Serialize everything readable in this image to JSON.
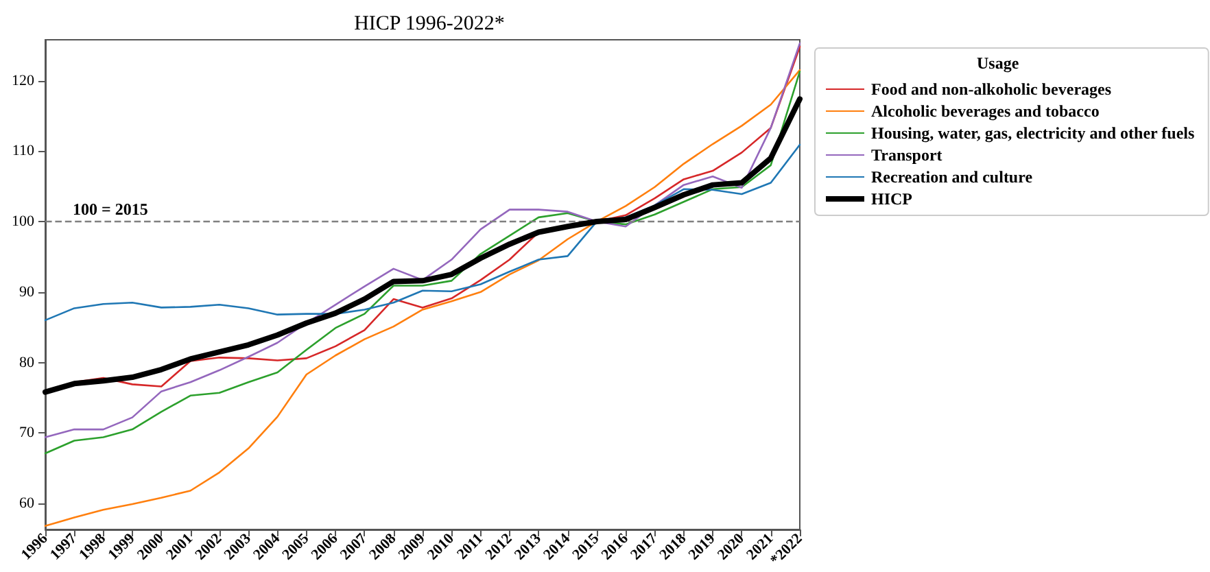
{
  "chart_data": {
    "type": "line",
    "title": "HICP 1996-2022*",
    "legend_title": "Usage",
    "categories": [
      "1996",
      "1997",
      "1998",
      "1999",
      "2000",
      "2001",
      "2002",
      "2003",
      "2004",
      "2005",
      "2006",
      "2007",
      "2008",
      "2009",
      "2010",
      "2011",
      "2012",
      "2013",
      "2014",
      "2015",
      "2016",
      "2017",
      "2018",
      "2019",
      "2020",
      "2021",
      "*2022"
    ],
    "series": [
      {
        "name": "Food and non-alkoholic beverages",
        "color": "#d62728",
        "values": [
          75.8,
          77.2,
          77.8,
          76.9,
          76.6,
          80.2,
          80.7,
          80.6,
          80.3,
          80.6,
          82.3,
          84.6,
          89.0,
          87.8,
          89.1,
          91.7,
          94.6,
          98.5,
          99.3,
          100,
          100.9,
          103.3,
          106.0,
          107.2,
          109.8,
          113.3,
          124.8
        ]
      },
      {
        "name": "Alcoholic beverages and tobacco",
        "color": "#ff7f0e",
        "values": [
          56.8,
          58.0,
          59.1,
          59.9,
          60.8,
          61.8,
          64.4,
          67.8,
          72.3,
          78.3,
          81.0,
          83.3,
          85.1,
          87.5,
          88.7,
          90.0,
          92.5,
          94.5,
          97.5,
          100,
          102.2,
          104.9,
          108.2,
          111.0,
          113.6,
          116.6,
          121.5
        ]
      },
      {
        "name": "Housing, water, gas, electricity and other fuels",
        "color": "#2ca02c",
        "values": [
          67.1,
          68.9,
          69.4,
          70.5,
          73.0,
          75.3,
          75.7,
          77.2,
          78.6,
          81.8,
          84.9,
          86.9,
          90.9,
          90.9,
          91.6,
          95.4,
          98.0,
          100.6,
          101.2,
          100,
          99.6,
          101.0,
          102.8,
          104.6,
          104.9,
          108.0,
          121.3
        ]
      },
      {
        "name": "Transport",
        "color": "#9467bd",
        "values": [
          69.4,
          70.5,
          70.5,
          72.2,
          75.9,
          77.2,
          78.9,
          80.8,
          82.8,
          85.6,
          88.2,
          90.8,
          93.3,
          91.7,
          94.6,
          98.9,
          101.7,
          101.7,
          101.4,
          100,
          99.3,
          102.3,
          105.2,
          106.4,
          104.8,
          113.3,
          125.3
        ]
      },
      {
        "name": "Recreation and culture",
        "color": "#1f77b4",
        "values": [
          86.0,
          87.7,
          88.3,
          88.5,
          87.8,
          87.9,
          88.2,
          87.7,
          86.8,
          86.9,
          86.9,
          87.5,
          88.5,
          90.2,
          90.1,
          91.1,
          92.9,
          94.6,
          95.1,
          100,
          100.6,
          102.3,
          104.6,
          104.5,
          103.9,
          105.5,
          110.9
        ]
      },
      {
        "name": "HICP",
        "color": "#000000",
        "values": [
          75.8,
          77.0,
          77.4,
          77.9,
          79.0,
          80.5,
          81.5,
          82.5,
          83.9,
          85.6,
          87.0,
          89.0,
          91.5,
          91.6,
          92.5,
          94.8,
          96.8,
          98.5,
          99.3,
          100,
          100.3,
          102.0,
          103.8,
          105.2,
          105.5,
          109.0,
          117.4
        ]
      }
    ],
    "ylim": [
      56.3,
      125.8
    ],
    "yticks": [
      60,
      70,
      80,
      90,
      100,
      110,
      120
    ],
    "ref_lines": [
      {
        "axis": "y",
        "value": 100,
        "label": "100 = 2015",
        "color": "#808080",
        "line_style": "dashed"
      }
    ],
    "grid": false,
    "legend": "top right",
    "marker": "none",
    "line_style": "solid"
  }
}
